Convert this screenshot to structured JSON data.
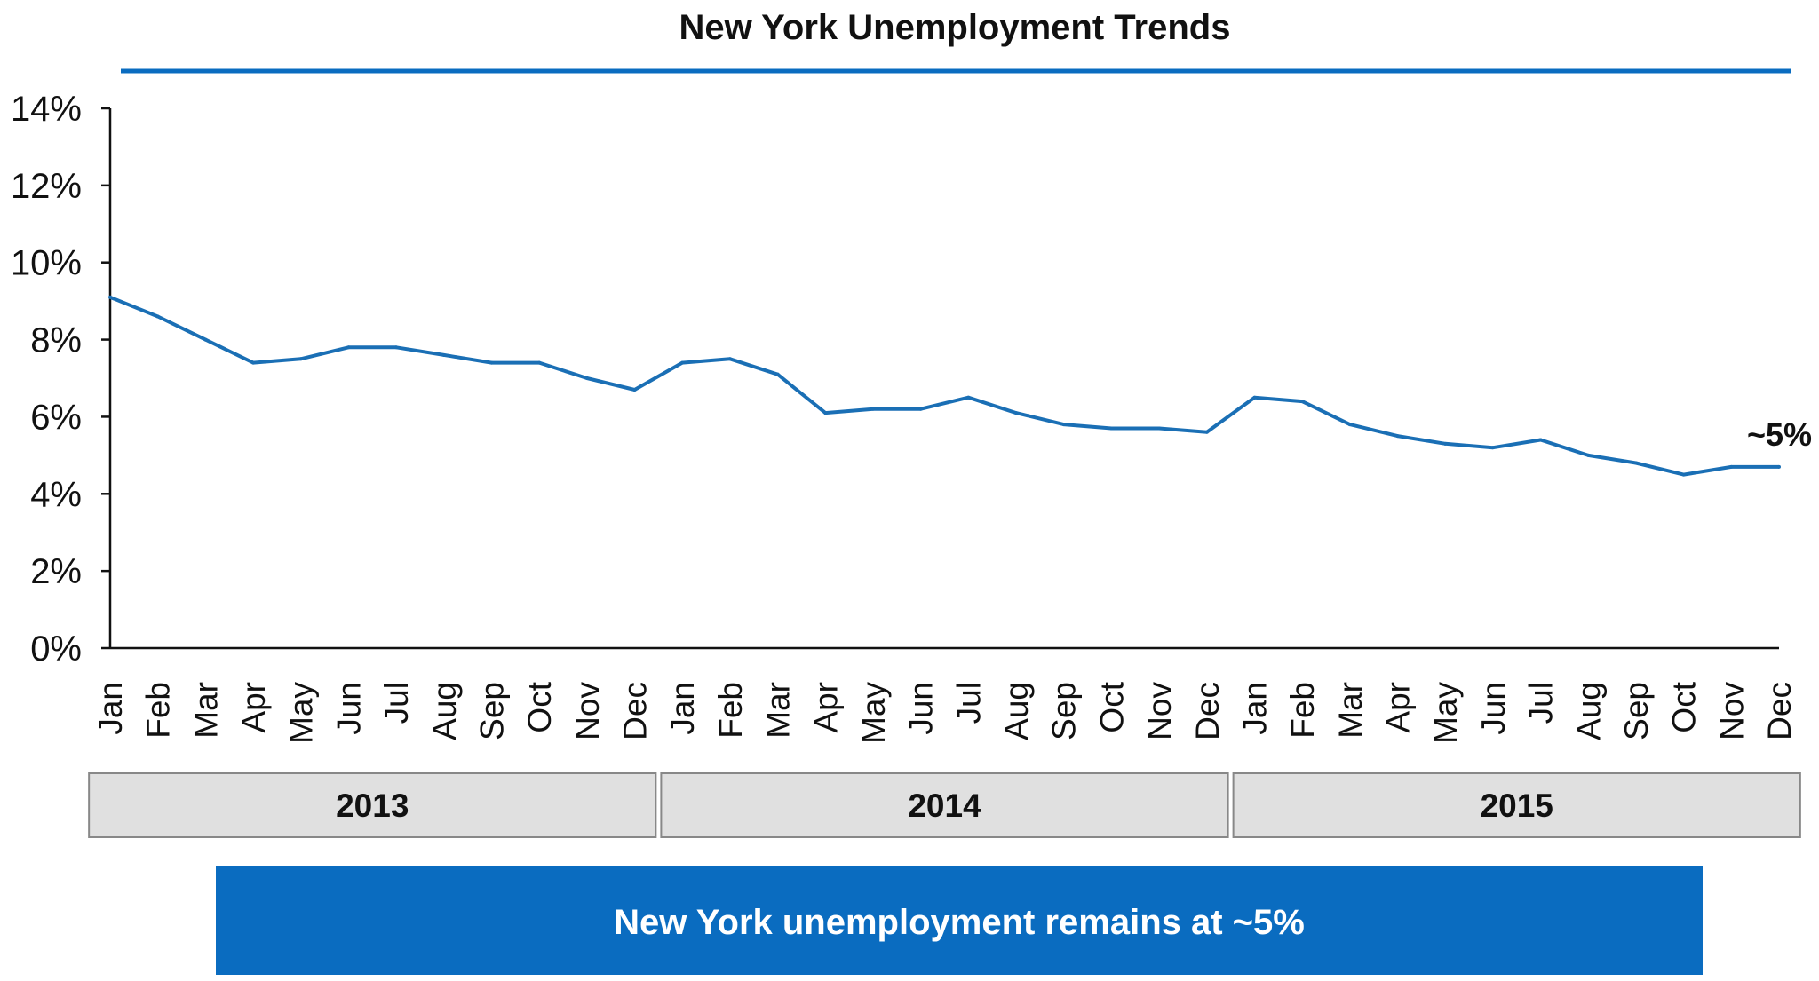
{
  "chart_data": {
    "type": "line",
    "title": "New York Unemployment Trends",
    "xlabel": "",
    "ylabel": "",
    "ylim": [
      0,
      14
    ],
    "yticks": [
      "0%",
      "2%",
      "4%",
      "6%",
      "8%",
      "10%",
      "12%",
      "14%"
    ],
    "grid": false,
    "legend": "none",
    "colors": {
      "line": "#1a6fb5",
      "accent": "#0a6cc0",
      "year_band": "#e0e0e0",
      "axis": "#111111"
    },
    "categories": [
      "Jan",
      "Feb",
      "Mar",
      "Apr",
      "May",
      "Jun",
      "Jul",
      "Aug",
      "Sep",
      "Oct",
      "Nov",
      "Dec",
      "Jan",
      "Feb",
      "Mar",
      "Apr",
      "May",
      "Jun",
      "Jul",
      "Aug",
      "Sep",
      "Oct",
      "Nov",
      "Dec",
      "Jan",
      "Feb",
      "Mar",
      "Apr",
      "May",
      "Jun",
      "Jul",
      "Aug",
      "Sep",
      "Oct",
      "Nov",
      "Dec"
    ],
    "years": [
      {
        "label": "2013",
        "start": 0,
        "end": 11
      },
      {
        "label": "2014",
        "start": 12,
        "end": 23
      },
      {
        "label": "2015",
        "start": 24,
        "end": 35
      }
    ],
    "series": [
      {
        "values": [
          9.1,
          8.6,
          8.0,
          7.4,
          7.5,
          7.8,
          7.8,
          7.6,
          7.4,
          7.4,
          7.0,
          6.7,
          7.4,
          7.5,
          7.1,
          6.1,
          6.2,
          6.2,
          6.5,
          6.1,
          5.8,
          5.7,
          5.7,
          5.6,
          6.5,
          6.4,
          5.8,
          5.5,
          5.3,
          5.2,
          5.4,
          5.0,
          4.8,
          4.5,
          4.7,
          4.7
        ]
      }
    ],
    "annotation": "~5%",
    "callout": "New York unemployment remains at ~5%"
  }
}
